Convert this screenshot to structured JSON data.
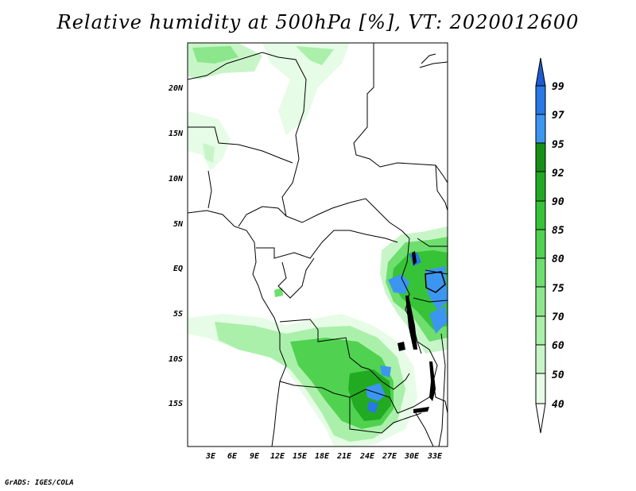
{
  "title": "Relative humidity at 500hPa [%], VT: 2020012600",
  "credit": "GrADS: IGES/COLA",
  "map": {
    "lat_ticks": [
      "20N",
      "15N",
      "10N",
      "5N",
      "EQ",
      "5S",
      "10S",
      "15S"
    ],
    "lon_ticks": [
      "3E",
      "6E",
      "9E",
      "12E",
      "15E",
      "18E",
      "21E",
      "24E",
      "27E",
      "30E",
      "33E"
    ]
  },
  "colorbar": {
    "levels": [
      "40",
      "50",
      "60",
      "70",
      "75",
      "80",
      "85",
      "90",
      "92",
      "95",
      "97",
      "99"
    ],
    "colors": {
      "c40_50": "#e6fce6",
      "c50_60": "#c8f5c8",
      "c60_70": "#aaf0aa",
      "c70_75": "#8ce68c",
      "c75_80": "#6ede6e",
      "c80_85": "#50d250",
      "c85_90": "#37c337",
      "c90_92": "#23aa23",
      "c92_95": "#168f16",
      "c95_97": "#3c96f0",
      "c97_99": "#2878e6",
      "c99_up": "#1e5ad2"
    }
  }
}
